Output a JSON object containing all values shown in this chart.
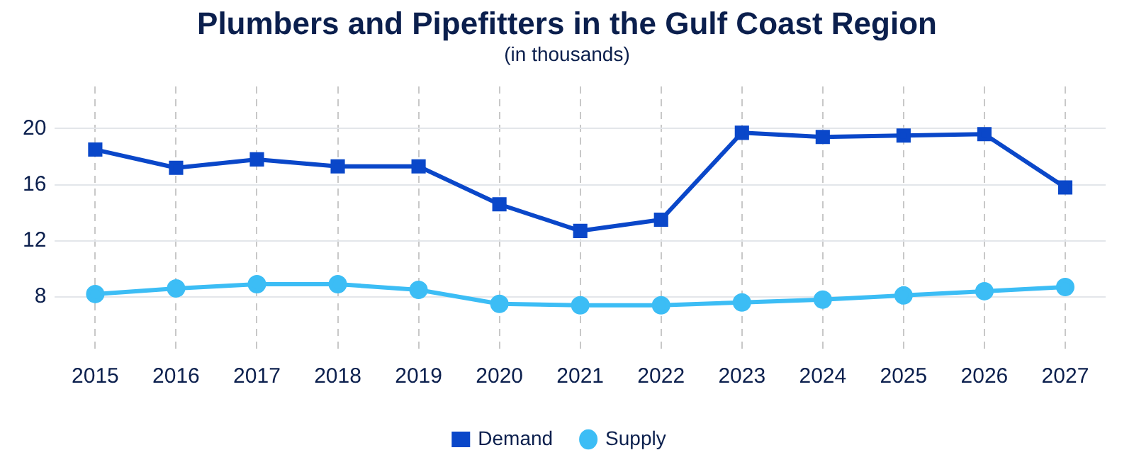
{
  "chart_data": {
    "type": "line",
    "title": "Plumbers and Pipefitters in the Gulf Coast Region",
    "subtitle": "(in thousands)",
    "categories": [
      "2015",
      "2016",
      "2017",
      "2018",
      "2019",
      "2020",
      "2021",
      "2022",
      "2023",
      "2024",
      "2025",
      "2026",
      "2027"
    ],
    "series": [
      {
        "name": "Demand",
        "color": "#0a47c9",
        "marker": "square",
        "values": [
          18.5,
          17.2,
          17.8,
          17.3,
          17.3,
          14.6,
          12.7,
          13.5,
          19.7,
          19.4,
          19.5,
          19.6,
          15.8
        ]
      },
      {
        "name": "Supply",
        "color": "#3cbdf5",
        "marker": "circle",
        "values": [
          8.2,
          8.6,
          8.9,
          8.9,
          8.5,
          7.5,
          7.4,
          7.4,
          7.6,
          7.8,
          8.1,
          8.4,
          8.7
        ]
      }
    ],
    "ylim": [
      4,
      23
    ],
    "yticks": [
      8,
      12,
      16,
      20
    ],
    "grid": true,
    "legend": "bottom",
    "line_style": "solid"
  }
}
